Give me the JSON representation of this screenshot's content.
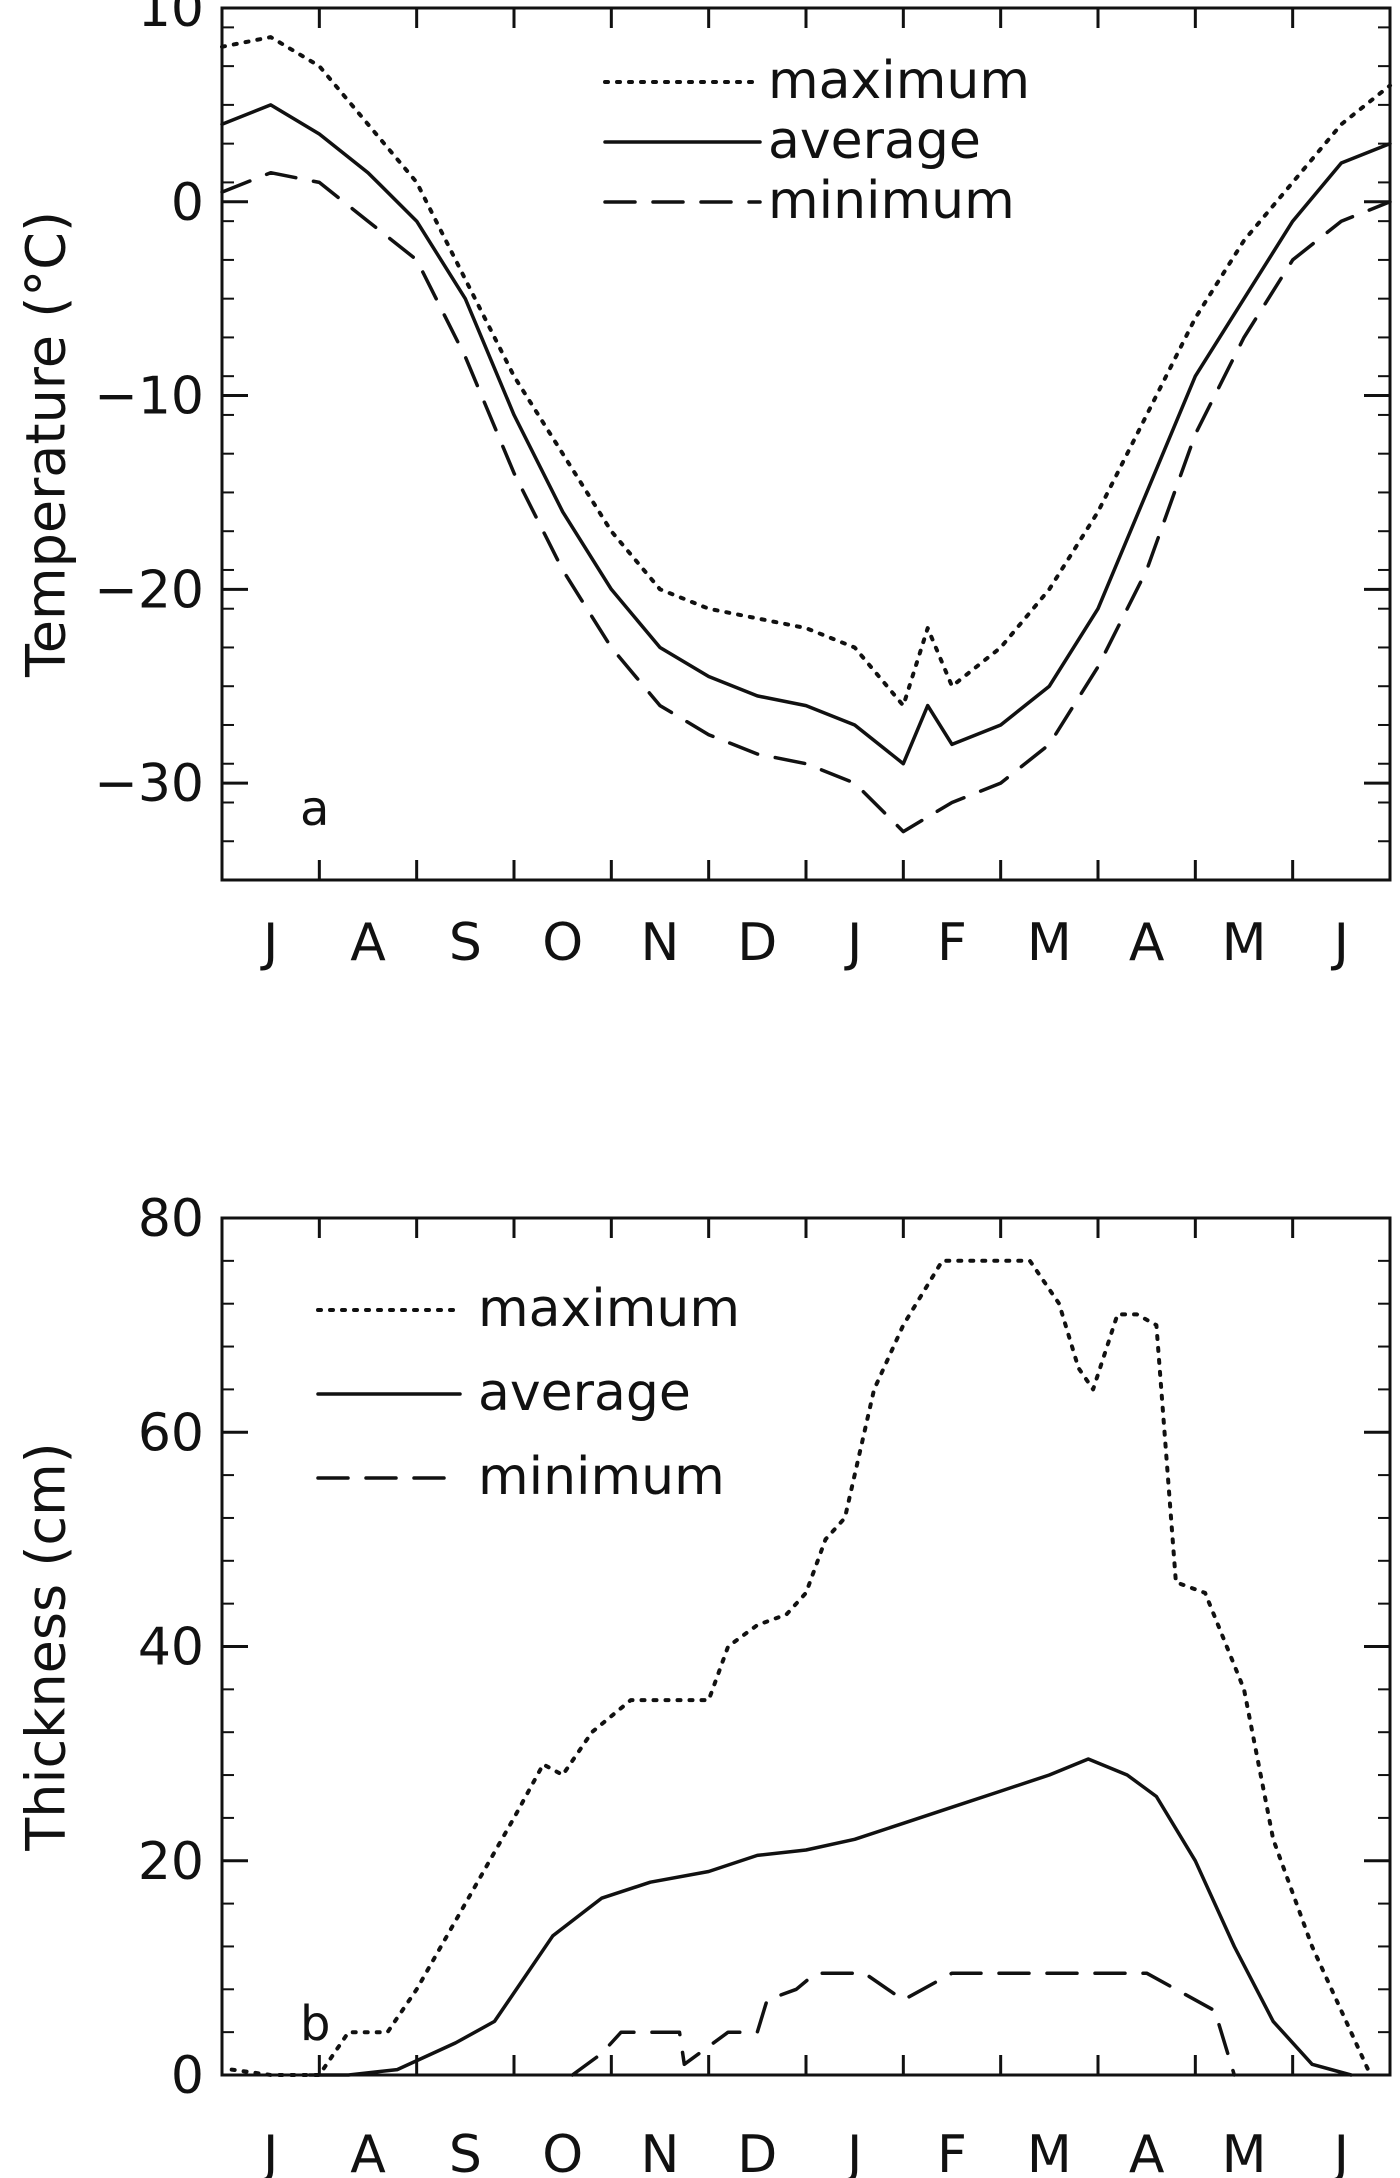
{
  "chart_data": [
    {
      "type": "line",
      "panel_label": "a",
      "xlabel": "",
      "ylabel": "Temperature (°C)",
      "ylim": [
        -35,
        10
      ],
      "yticks": [
        10,
        0,
        -10,
        -20,
        -30
      ],
      "ytick_labels": [
        "10",
        "0",
        "−10",
        "−20",
        "−30"
      ],
      "xlim": [
        0,
        12
      ],
      "month_labels": [
        "J",
        "A",
        "S",
        "O",
        "N",
        "D",
        "J",
        "F",
        "M",
        "A",
        "M",
        "J"
      ],
      "grid": false,
      "legend_position": "top-right",
      "series": [
        {
          "name": "maximum",
          "style": "dotted",
          "x": [
            0,
            0.5,
            1,
            1.5,
            2,
            2.5,
            3,
            3.5,
            4,
            4.5,
            5,
            5.5,
            6,
            6.5,
            7,
            7.25,
            7.5,
            8,
            8.5,
            9,
            9.5,
            10,
            10.5,
            11,
            11.5,
            12
          ],
          "y": [
            8,
            8.5,
            7,
            4,
            1,
            -4,
            -9,
            -13,
            -17,
            -20,
            -21,
            -21.5,
            -22,
            -23,
            -26,
            -22,
            -25,
            -23,
            -20,
            -16,
            -11,
            -6,
            -2,
            1,
            4,
            6
          ]
        },
        {
          "name": "average",
          "style": "solid",
          "x": [
            0,
            0.5,
            1,
            1.5,
            2,
            2.5,
            3,
            3.5,
            4,
            4.5,
            5,
            5.5,
            6,
            6.5,
            7,
            7.25,
            7.5,
            8,
            8.5,
            9,
            9.5,
            10,
            10.5,
            11,
            11.5,
            12
          ],
          "y": [
            4,
            5,
            3.5,
            1.5,
            -1,
            -5,
            -11,
            -16,
            -20,
            -23,
            -24.5,
            -25.5,
            -26,
            -27,
            -29,
            -26,
            -28,
            -27,
            -25,
            -21,
            -15,
            -9,
            -5,
            -1,
            2,
            3
          ]
        },
        {
          "name": "minimum",
          "style": "dashed",
          "x": [
            0,
            0.5,
            1,
            1.5,
            2,
            2.5,
            3,
            3.5,
            4,
            4.5,
            5,
            5.5,
            6,
            6.5,
            7,
            7.5,
            8,
            8.5,
            9,
            9.5,
            10,
            10.5,
            11,
            11.5,
            12
          ],
          "y": [
            0.5,
            1.5,
            1,
            -1,
            -3,
            -8,
            -14,
            -19,
            -23,
            -26,
            -27.5,
            -28.5,
            -29,
            -30,
            -32.5,
            -31,
            -30,
            -28,
            -24,
            -19,
            -12,
            -7,
            -3,
            -1,
            0
          ]
        }
      ]
    },
    {
      "type": "line",
      "panel_label": "b",
      "xlabel": "",
      "ylabel": "Thickness (cm)",
      "ylim": [
        0,
        80
      ],
      "yticks": [
        0,
        20,
        40,
        60,
        80
      ],
      "ytick_labels": [
        "0",
        "20",
        "40",
        "60",
        "80"
      ],
      "xlim": [
        0,
        12
      ],
      "month_labels": [
        "J",
        "A",
        "S",
        "O",
        "N",
        "D",
        "J",
        "F",
        "M",
        "A",
        "M",
        "J"
      ],
      "grid": false,
      "legend_position": "top-left",
      "series": [
        {
          "name": "maximum",
          "style": "dotted",
          "x": [
            0.1,
            0.5,
            1,
            1.3,
            1.7,
            2,
            2.5,
            3,
            3.3,
            3.5,
            3.8,
            4.2,
            4.6,
            5,
            5.2,
            5.5,
            5.8,
            6,
            6.2,
            6.4,
            6.7,
            7,
            7.4,
            7.8,
            8.3,
            8.6,
            8.8,
            8.95,
            9.2,
            9.4,
            9.6,
            9.8,
            10.1,
            10.5,
            10.8,
            11.2,
            11.5,
            11.8
          ],
          "y": [
            0.5,
            0,
            0,
            4,
            4,
            8,
            16,
            24,
            29,
            28,
            32,
            35,
            35,
            35,
            40,
            42,
            43,
            45,
            50,
            52,
            64,
            70,
            76,
            76,
            76,
            72,
            66,
            64,
            71,
            71,
            70,
            46,
            45,
            36,
            22,
            12,
            6,
            0
          ]
        },
        {
          "name": "average",
          "style": "solid",
          "x": [
            0.9,
            1.3,
            1.8,
            2.4,
            2.8,
            3.4,
            3.9,
            4.4,
            5,
            5.5,
            6,
            6.5,
            7,
            7.5,
            8,
            8.5,
            8.9,
            9.3,
            9.6,
            10,
            10.4,
            10.8,
            11.2,
            11.6
          ],
          "y": [
            0,
            0,
            0.5,
            3,
            5,
            13,
            16.5,
            18,
            19,
            20.5,
            21,
            22,
            23.5,
            25,
            26.5,
            28,
            29.5,
            28,
            26,
            20,
            12,
            5,
            1,
            0
          ]
        },
        {
          "name": "minimum",
          "style": "dashed",
          "x": [
            3.6,
            3.9,
            4.1,
            4.4,
            4.5,
            4.7,
            4.75,
            5.2,
            5.5,
            5.6,
            5.9,
            6.1,
            6.5,
            6.6,
            7,
            7.5,
            8,
            8.5,
            8.9,
            9.2,
            9.5,
            10.2,
            10.4
          ],
          "y": [
            0,
            2,
            4,
            4,
            4,
            4,
            1,
            4,
            4,
            7,
            8,
            9.5,
            9.5,
            9.5,
            7,
            9.5,
            9.5,
            9.5,
            9.5,
            9.5,
            9.5,
            6,
            0
          ]
        }
      ]
    }
  ]
}
